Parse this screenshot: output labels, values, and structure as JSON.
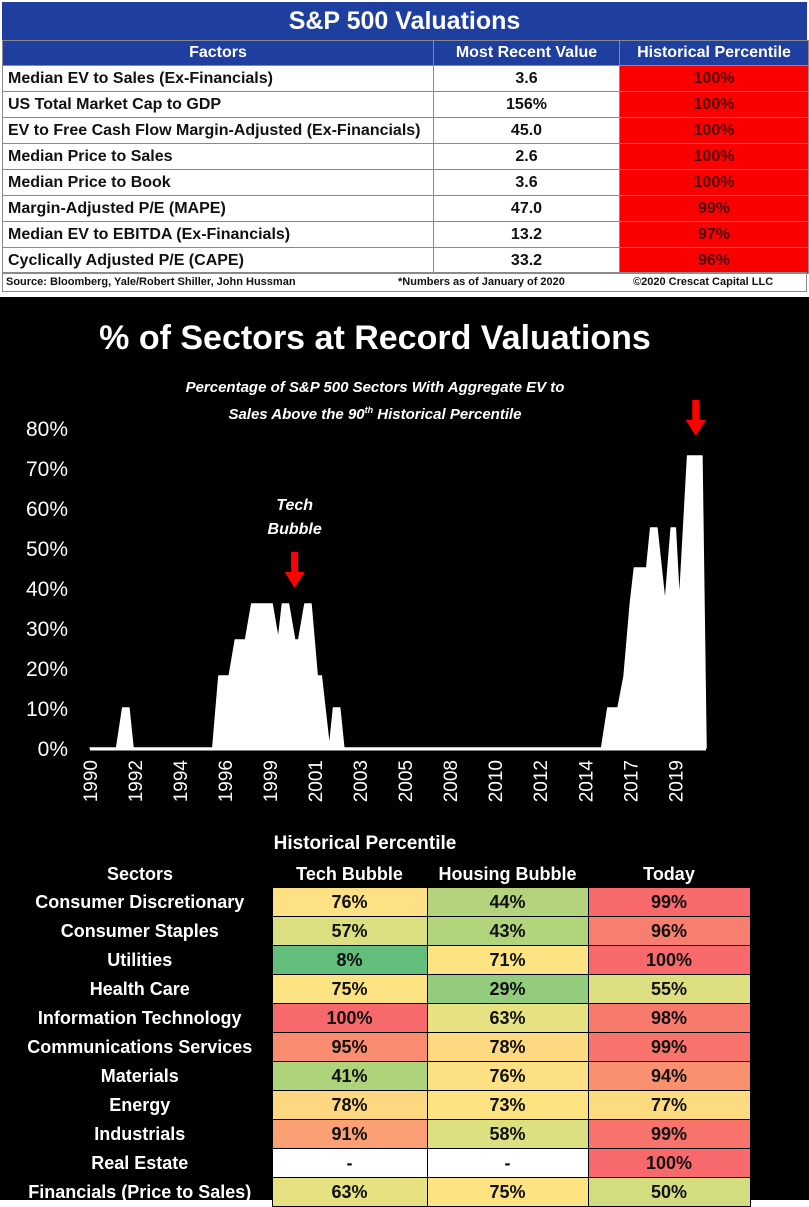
{
  "valuations": {
    "title": "S&P 500 Valuations",
    "headers": [
      "Factors",
      "Most Recent Value",
      "Historical Percentile"
    ],
    "rows": [
      {
        "factor": "Median EV to Sales (Ex-Financials)",
        "value": "3.6",
        "percentile": "100%"
      },
      {
        "factor": "US Total Market Cap to GDP",
        "value": "156%",
        "percentile": "100%"
      },
      {
        "factor": "EV to Free Cash Flow Margin-Adjusted (Ex-Financials)",
        "value": "45.0",
        "percentile": "100%"
      },
      {
        "factor": "Median Price to Sales",
        "value": "2.6",
        "percentile": "100%"
      },
      {
        "factor": "Median Price to Book",
        "value": "3.6",
        "percentile": "100%"
      },
      {
        "factor": "Margin-Adjusted P/E (MAPE)",
        "value": "47.0",
        "percentile": "99%"
      },
      {
        "factor": "Median EV to EBITDA (Ex-Financials)",
        "value": "13.2",
        "percentile": "97%"
      },
      {
        "factor": "Cyclically Adjusted P/E (CAPE)",
        "value": "33.2",
        "percentile": "96%"
      }
    ],
    "source": "Source: Bloomberg, Yale/Robert Shiller, John Hussman",
    "note": "*Numbers as of January of 2020",
    "copyright": "©2020 Crescat Capital LLC",
    "percentile_color": "#fb0000",
    "header_color": "#1f3fa0"
  },
  "chart_data": {
    "type": "area",
    "title": "% of Sectors at Record Valuations",
    "subtitle_line1": "Percentage of S&P 500 Sectors With Aggregate EV to",
    "subtitle_line2_pre": "Sales Above the 90",
    "subtitle_sup": "th",
    "subtitle_line2_post": "  Historical Percentile",
    "ylabel": "",
    "xlabel": "",
    "ylim": [
      0,
      80
    ],
    "yticks": [
      0,
      10,
      20,
      30,
      40,
      50,
      60,
      70,
      80
    ],
    "ytick_labels": [
      "0%",
      "10%",
      "20%",
      "30%",
      "40%",
      "50%",
      "60%",
      "70%",
      "80%"
    ],
    "xlim": [
      1990,
      2020.1
    ],
    "xtick_labels": [
      "1990",
      "1992",
      "1994",
      "1996",
      "1999",
      "2001",
      "2003",
      "2005",
      "2008",
      "2010",
      "2012",
      "2014",
      "2017",
      "2019"
    ],
    "xtick_positions": [
      1990,
      1992.2,
      1994.4,
      1996.6,
      1998.8,
      2001.0,
      2003.2,
      2005.4,
      2007.6,
      2009.8,
      2012.0,
      2014.2,
      2016.4,
      2018.6
    ],
    "x": [
      1990,
      1991.3,
      1991.6,
      1991.9,
      1992.1,
      1992.2,
      1996.0,
      1996.3,
      1996.8,
      1997.1,
      1997.6,
      1997.9,
      1998.3,
      1998.5,
      1998.9,
      1999.2,
      1999.4,
      1999.7,
      2000.0,
      2000.2,
      2000.5,
      2000.8,
      2001.1,
      2001.3,
      2001.7,
      2001.9,
      2002.2,
      2002.4,
      2015.0,
      2015.3,
      2015.8,
      2016.1,
      2016.4,
      2016.6,
      2016.9,
      2017.2,
      2017.4,
      2017.7,
      2018.1,
      2018.4,
      2018.6,
      2018.8,
      2019.2,
      2019.5,
      2019.9,
      2020.1
    ],
    "values": [
      0,
      0,
      10,
      10,
      0,
      0,
      0,
      18,
      18,
      27,
      27,
      36,
      36,
      36,
      36,
      27,
      36,
      36,
      27,
      27,
      36,
      36,
      18,
      18,
      0,
      10,
      10,
      0,
      0,
      10,
      10,
      18,
      36,
      45,
      45,
      45,
      55,
      55,
      36,
      55,
      55,
      36,
      73,
      73,
      73,
      0
    ],
    "annotations": [
      {
        "text_line1": "Tech",
        "text_line2": "Bubble",
        "x": 2000.0,
        "arrow_y": 40
      },
      {
        "text_line1": "",
        "text_line2": "",
        "x": 2019.6,
        "arrow_y": 78
      }
    ],
    "fill_color": "#ffffff",
    "arrow_color": "#ff0000"
  },
  "heatmap": {
    "title": "Historical Percentile",
    "headers": [
      "Sectors",
      "Tech Bubble",
      "Housing Bubble",
      "Today"
    ],
    "rows": [
      {
        "sector": "Consumer Discretionary",
        "values": [
          "76%",
          "44%",
          "99%"
        ],
        "colors": [
          "#fde184",
          "#b3d47c",
          "#f8696b"
        ]
      },
      {
        "sector": "Consumer Staples",
        "values": [
          "57%",
          "43%",
          "96%"
        ],
        "colors": [
          "#dcdf81",
          "#b2d47b",
          "#f87f6f"
        ]
      },
      {
        "sector": "Utilities",
        "values": [
          "8%",
          "71%",
          "100%"
        ],
        "colors": [
          "#63be7b",
          "#fee382",
          "#f8696b"
        ]
      },
      {
        "sector": "Health Care",
        "values": [
          "75%",
          "29%",
          "55%"
        ],
        "colors": [
          "#fee383",
          "#94cc7d",
          "#dddf81"
        ]
      },
      {
        "sector": "Information Technology",
        "values": [
          "100%",
          "63%",
          "98%"
        ],
        "colors": [
          "#f8696b",
          "#e7e281",
          "#f87a6d"
        ]
      },
      {
        "sector": "Communications Services",
        "values": [
          "95%",
          "78%",
          "99%"
        ],
        "colors": [
          "#f98c71",
          "#fdd981",
          "#f8736c"
        ]
      },
      {
        "sector": "Materials",
        "values": [
          "41%",
          "76%",
          "94%"
        ],
        "colors": [
          "#aed37b",
          "#fde083",
          "#f9906f"
        ]
      },
      {
        "sector": "Energy",
        "values": [
          "78%",
          "73%",
          "77%"
        ],
        "colors": [
          "#fdd880",
          "#fee383",
          "#fddb80"
        ]
      },
      {
        "sector": "Industrials",
        "values": [
          "91%",
          "58%",
          "99%"
        ],
        "colors": [
          "#faa074",
          "#dde081",
          "#f8736c"
        ]
      },
      {
        "sector": "Real Estate",
        "values": [
          "-",
          "-",
          "100%"
        ],
        "colors": [
          "#ffffff",
          "#ffffff",
          "#f8696b"
        ]
      },
      {
        "sector": "Financials (Price to Sales)",
        "values": [
          "63%",
          "75%",
          "50%"
        ],
        "colors": [
          "#e6e282",
          "#fee383",
          "#d3dd80"
        ]
      }
    ]
  }
}
